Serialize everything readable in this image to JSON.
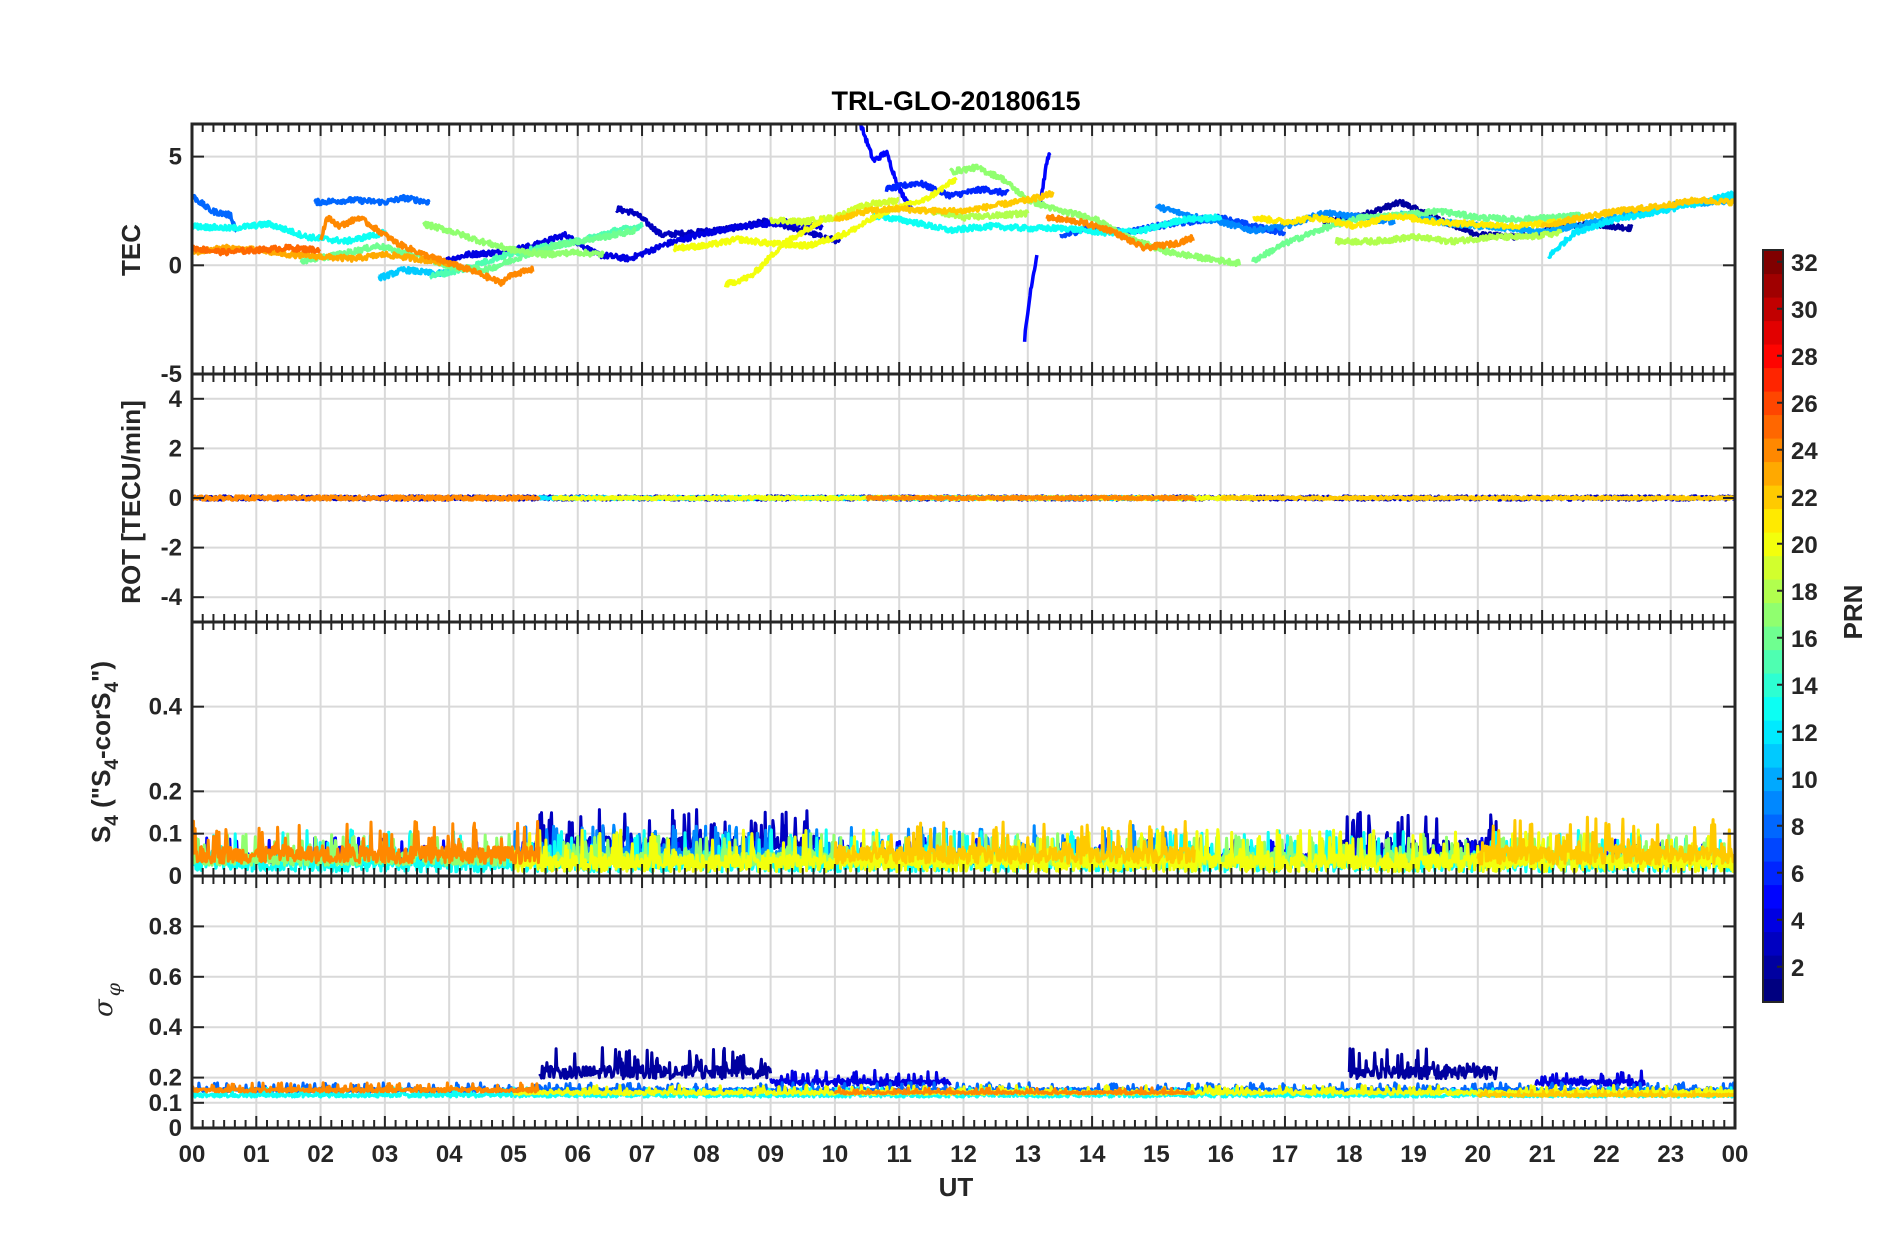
{
  "chart_data": {
    "type": "line",
    "title": "TRL-GLO-20180615",
    "xlabel": "UT",
    "x_ticks": [
      "00",
      "01",
      "02",
      "03",
      "04",
      "05",
      "06",
      "07",
      "08",
      "09",
      "10",
      "11",
      "12",
      "13",
      "14",
      "15",
      "16",
      "17",
      "18",
      "19",
      "20",
      "21",
      "22",
      "23",
      "00"
    ],
    "x_range_hours": [
      0,
      24
    ],
    "panels": [
      {
        "name": "tec",
        "ylabel": "TEC",
        "ylim": [
          -5,
          6.5
        ],
        "y_ticks": [
          -5,
          0,
          5
        ],
        "series": [
          {
            "prn": 2,
            "x": [
              17.6,
              18.2,
              18.8,
              19.4,
              20.0,
              20.6,
              21.2,
              21.8,
              22.4
            ],
            "y": [
              2.0,
              2.3,
              2.9,
              2.1,
              1.4,
              1.3,
              1.7,
              1.9,
              1.7
            ]
          },
          {
            "prn": 3,
            "x": [
              6.6,
              6.9,
              7.3,
              7.8,
              8.4,
              8.9,
              9.4,
              9.8,
              10.1
            ],
            "y": [
              2.6,
              2.4,
              1.4,
              1.5,
              1.7,
              2.0,
              1.7,
              1.3,
              1.1
            ]
          },
          {
            "prn": 4,
            "x": [
              3.8,
              4.3,
              4.8,
              5.3,
              5.8,
              6.3,
              6.8,
              7.4,
              8.0,
              8.6,
              9.3,
              9.8
            ],
            "y": [
              0.1,
              0.5,
              0.6,
              0.9,
              1.4,
              0.5,
              0.3,
              1.0,
              1.5,
              1.8,
              2.0,
              1.8
            ]
          },
          {
            "prn": 5,
            "x": [
              10.4,
              10.6,
              10.8,
              11.0,
              11.2
            ],
            "y": [
              6.5,
              4.8,
              5.2,
              3.5,
              2.6
            ]
          },
          {
            "prn": 5,
            "x": [
              12.95,
              13.05,
              13.15
            ],
            "y": [
              -3.4,
              -1.0,
              0.6
            ]
          },
          {
            "prn": 5,
            "x": [
              13.2,
              13.3,
              13.35
            ],
            "y": [
              3.0,
              4.8,
              5.2
            ]
          },
          {
            "prn": 6,
            "x": [
              10.8,
              11.3,
              11.8,
              12.3,
              12.7
            ],
            "y": [
              3.5,
              3.8,
              3.2,
              3.5,
              3.3
            ]
          },
          {
            "prn": 7,
            "x": [
              13.5,
              14.0,
              14.5,
              15.0,
              15.5,
              16.0,
              16.5,
              17.0
            ],
            "y": [
              1.3,
              1.8,
              1.5,
              1.8,
              2.0,
              2.2,
              1.8,
              1.5
            ]
          },
          {
            "prn": 8,
            "x": [
              1.9,
              2.5,
              3.0,
              3.3,
              3.7
            ],
            "y": [
              2.9,
              3.0,
              2.9,
              3.1,
              2.9
            ]
          },
          {
            "prn": 8,
            "x": [
              0.0,
              0.3,
              0.6,
              0.7
            ],
            "y": [
              3.2,
              2.5,
              2.3,
              1.5
            ]
          },
          {
            "prn": 9,
            "x": [
              15.0,
              15.5,
              16.0,
              16.5,
              17.0,
              17.6,
              18.2,
              18.7
            ],
            "y": [
              2.7,
              2.3,
              2.0,
              1.6,
              1.8,
              2.4,
              2.2,
              2.0
            ]
          },
          {
            "prn": 10,
            "x": [
              18.8,
              19.4,
              20.0,
              20.5,
              21.0,
              21.5,
              22.0,
              22.6,
              23.1,
              23.6,
              24.0
            ],
            "y": [
              2.4,
              2.0,
              1.8,
              1.7,
              1.5,
              1.8,
              2.1,
              2.5,
              2.8,
              2.9,
              3.0
            ]
          },
          {
            "prn": 11,
            "x": [
              2.9,
              3.3,
              3.8,
              4.2
            ],
            "y": [
              -0.6,
              -0.2,
              -0.4,
              -0.2
            ]
          },
          {
            "prn": 12,
            "x": [
              21.1,
              21.5,
              22.0,
              22.5,
              23.0,
              23.5,
              24.0
            ],
            "y": [
              0.4,
              1.5,
              2.0,
              2.3,
              2.6,
              2.9,
              3.3
            ]
          },
          {
            "prn": 13,
            "x": [
              0.0,
              0.6,
              1.2,
              1.8,
              2.4,
              3.0
            ],
            "y": [
              1.8,
              1.7,
              1.9,
              1.3,
              1.1,
              1.5
            ]
          },
          {
            "prn": 13,
            "x": [
              10.6,
              11.2,
              11.8,
              12.4,
              13.0,
              13.6,
              14.2,
              14.8,
              15.4,
              16.0
            ],
            "y": [
              2.3,
              2.0,
              1.6,
              1.8,
              1.7,
              1.7,
              1.5,
              1.6,
              2.1,
              2.2
            ]
          },
          {
            "prn": 15,
            "x": [
              3.7,
              4.2,
              4.8,
              5.4,
              6.0,
              6.6,
              7.0
            ],
            "y": [
              -0.5,
              -0.2,
              0.4,
              0.8,
              1.1,
              1.6,
              1.8
            ]
          },
          {
            "prn": 16,
            "x": [
              1.7,
              2.3,
              2.9,
              3.5,
              4.1,
              4.6,
              5.2,
              5.8,
              6.4,
              6.9
            ],
            "y": [
              0.2,
              0.5,
              0.9,
              0.4,
              -0.1,
              -0.2,
              0.5,
              1.0,
              1.3,
              1.6
            ]
          },
          {
            "prn": 16,
            "x": [
              16.5,
              17.0,
              17.6,
              18.2,
              18.8,
              19.4,
              20.0,
              20.6,
              21.2,
              21.6
            ],
            "y": [
              0.2,
              1.0,
              1.7,
              2.2,
              2.3,
              2.5,
              2.2,
              2.1,
              2.2,
              2.3
            ]
          },
          {
            "prn": 17,
            "x": [
              3.6,
              4.0,
              4.5,
              5.0,
              5.5,
              6.0,
              6.4
            ],
            "y": [
              1.9,
              1.6,
              1.1,
              0.7,
              0.5,
              0.6,
              0.5
            ]
          },
          {
            "prn": 17,
            "x": [
              11.8,
              12.2,
              12.6,
              13.0,
              13.5,
              14.0,
              14.6,
              15.2,
              15.8,
              16.3
            ],
            "y": [
              4.3,
              4.5,
              4.0,
              3.0,
              2.5,
              2.2,
              1.2,
              0.6,
              0.3,
              0.1
            ]
          },
          {
            "prn": 18,
            "x": [
              17.8,
              18.4,
              19.0,
              19.6,
              20.2,
              20.8,
              21.3
            ],
            "y": [
              1.1,
              1.1,
              1.3,
              1.1,
              1.3,
              1.3,
              1.5
            ]
          },
          {
            "prn": 18,
            "x": [
              11.5,
              12.0,
              12.6,
              13.0
            ],
            "y": [
              2.5,
              2.2,
              2.3,
              2.4
            ]
          },
          {
            "prn": 19,
            "x": [
              9.0,
              9.5,
              10.0,
              10.5,
              11.0
            ],
            "y": [
              2.1,
              2.0,
              2.2,
              2.8,
              3.0
            ]
          },
          {
            "prn": 20,
            "x": [
              7.5,
              8.0,
              8.5,
              9.0,
              9.6,
              10.2,
              10.8,
              11.4,
              11.9
            ],
            "y": [
              0.8,
              0.9,
              1.2,
              1.0,
              0.9,
              1.5,
              2.5,
              3.0,
              4.0
            ]
          },
          {
            "prn": 20,
            "x": [
              8.3,
              8.7,
              9.2,
              9.8
            ],
            "y": [
              -0.9,
              -0.5,
              1.0,
              2.1
            ]
          },
          {
            "prn": 21,
            "x": [
              16.5,
              17.0,
              17.5,
              18.1,
              18.7,
              19.3,
              19.9,
              20.6,
              21.3
            ],
            "y": [
              2.2,
              2.0,
              2.2,
              1.8,
              2.3,
              2.0,
              1.9,
              1.8,
              2.0
            ]
          },
          {
            "prn": 22,
            "x": [
              21.0,
              21.6,
              22.2,
              22.8,
              23.4,
              24.0
            ],
            "y": [
              1.8,
              2.2,
              2.5,
              2.7,
              3.0,
              2.9
            ]
          },
          {
            "prn": 22,
            "x": [
              10.0,
              10.5,
              11.0,
              11.5,
              12.0,
              12.6,
              13.0,
              13.4
            ],
            "y": [
              2.1,
              2.5,
              2.6,
              2.5,
              2.5,
              2.8,
              3.0,
              3.3
            ]
          },
          {
            "prn": 23,
            "x": [
              0.0,
              0.5,
              1.0,
              1.5,
              2.0,
              2.5,
              3.0,
              3.5,
              4.0
            ],
            "y": [
              0.6,
              0.8,
              0.7,
              0.5,
              0.4,
              0.3,
              0.5,
              0.3,
              0.1
            ]
          },
          {
            "prn": 24,
            "x": [
              2.0,
              2.1,
              2.3,
              2.6,
              2.9,
              3.2,
              3.6,
              4.0,
              4.4,
              4.8,
              5.0,
              5.3
            ],
            "y": [
              1.2,
              2.2,
              1.8,
              2.2,
              1.6,
              1.0,
              0.5,
              0.1,
              -0.3,
              -0.8,
              -0.4,
              -0.2
            ]
          },
          {
            "prn": 24,
            "x": [
              13.3,
              13.8,
              14.3,
              14.8,
              15.3,
              15.6
            ],
            "y": [
              2.2,
              2.0,
              1.6,
              0.8,
              1.0,
              1.3
            ]
          },
          {
            "prn": 25,
            "x": [
              0.0,
              0.5,
              1.0,
              1.5,
              2.0
            ],
            "y": [
              0.8,
              0.6,
              0.7,
              0.8,
              0.7
            ]
          }
        ]
      },
      {
        "name": "rot",
        "ylabel": "ROT [TECU/min]",
        "ylim": [
          -5,
          5
        ],
        "y_ticks": [
          -4,
          -2,
          0,
          2,
          4
        ],
        "series": [
          {
            "prn": 3,
            "x": [
              0,
              24
            ],
            "y": [
              0,
              0
            ],
            "noise": 0.08
          },
          {
            "prn": 12,
            "x": [
              5.4,
              15.6
            ],
            "y": [
              0,
              0
            ],
            "noise": 0.06
          },
          {
            "prn": 20,
            "x": [
              5.6,
              16.5
            ],
            "y": [
              0,
              0
            ],
            "noise": 0.06
          },
          {
            "prn": 24,
            "x": [
              0,
              5.4
            ],
            "y": [
              0,
              0
            ],
            "noise": 0.08
          },
          {
            "prn": 24,
            "x": [
              10.5,
              15.6
            ],
            "y": [
              0,
              0
            ],
            "noise": 0.06
          },
          {
            "prn": 22,
            "x": [
              16.0,
              24.0
            ],
            "y": [
              0,
              0
            ],
            "noise": 0.05
          }
        ]
      },
      {
        "name": "s4",
        "ylabel": "S4 (\"S4-corS4\")",
        "ylabel_parts": {
          "s": "S",
          "sub": "4",
          "open": " (\"S",
          "minus": "-corS",
          "close": "\")"
        },
        "ylim": [
          0,
          0.6
        ],
        "y_ticks": [
          0,
          0.1,
          0.2,
          0.4
        ],
        "series": [
          {
            "prn": 3,
            "x": [
              5.4,
              9.8
            ],
            "level": 0.07,
            "amp": 0.09
          },
          {
            "prn": 3,
            "x": [
              17.8,
              20.3
            ],
            "level": 0.06,
            "amp": 0.1
          },
          {
            "prn": 5,
            "x": [
              0,
              24
            ],
            "level": 0.04,
            "amp": 0.05
          },
          {
            "prn": 9,
            "x": [
              5.0,
              15.6
            ],
            "level": 0.05,
            "amp": 0.07
          },
          {
            "prn": 13,
            "x": [
              0,
              24
            ],
            "level": 0.03,
            "amp": 0.08
          },
          {
            "prn": 17,
            "x": [
              0,
              24
            ],
            "level": 0.04,
            "amp": 0.06
          },
          {
            "prn": 20,
            "x": [
              5.0,
              24
            ],
            "level": 0.03,
            "amp": 0.08
          },
          {
            "prn": 24,
            "x": [
              0,
              5.4
            ],
            "level": 0.05,
            "amp": 0.08
          },
          {
            "prn": 22,
            "x": [
              10.0,
              15.6
            ],
            "level": 0.05,
            "amp": 0.08
          },
          {
            "prn": 22,
            "x": [
              20.0,
              24.0
            ],
            "level": 0.05,
            "amp": 0.09
          }
        ]
      },
      {
        "name": "sigma_phi",
        "ylabel": "σ φ",
        "ylabel_parts": {
          "sigma": "σ",
          "phi": "φ"
        },
        "ylim": [
          0,
          1
        ],
        "y_ticks": [
          0,
          0.1,
          0.2,
          0.4,
          0.6,
          0.8
        ],
        "series": [
          {
            "prn": 2,
            "x": [
              5.4,
              7.2,
              9.0
            ],
            "level": 0.22,
            "amp": 0.1
          },
          {
            "prn": 2,
            "x": [
              18.0,
              20.3
            ],
            "level": 0.22,
            "amp": 0.1
          },
          {
            "prn": 4,
            "x": [
              9.0,
              11.8
            ],
            "level": 0.18,
            "amp": 0.05
          },
          {
            "prn": 4,
            "x": [
              20.9,
              22.6
            ],
            "level": 0.18,
            "amp": 0.05
          },
          {
            "prn": 8,
            "x": [
              0,
              24
            ],
            "level": 0.15,
            "amp": 0.03
          },
          {
            "prn": 13,
            "x": [
              0,
              24
            ],
            "level": 0.13,
            "amp": 0.03
          },
          {
            "prn": 20,
            "x": [
              5.0,
              24
            ],
            "level": 0.14,
            "amp": 0.03
          },
          {
            "prn": 24,
            "x": [
              0,
              5.4
            ],
            "level": 0.15,
            "amp": 0.03
          },
          {
            "prn": 24,
            "x": [
              10.0,
              15.6
            ],
            "level": 0.14,
            "amp": 0.02
          },
          {
            "prn": 22,
            "x": [
              20.0,
              24.0
            ],
            "level": 0.13,
            "amp": 0.02
          }
        ]
      }
    ],
    "colorbar": {
      "label": "PRN",
      "range": [
        1,
        32
      ],
      "ticks": [
        2,
        4,
        6,
        8,
        10,
        12,
        14,
        16,
        18,
        20,
        22,
        24,
        26,
        28,
        30,
        32
      ],
      "colormap": "jet"
    }
  }
}
